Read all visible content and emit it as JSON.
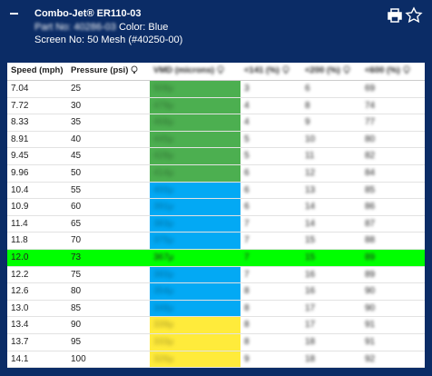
{
  "header": {
    "title": "Combo-Jet® ER110-03",
    "part_no": "Part No: 40286-03",
    "color": "Color: Blue",
    "screen": "Screen No: 50 Mesh (#40250-00)"
  },
  "table": {
    "columns": [
      "Speed (mph)",
      "Pressure (psi)",
      "VMD (microns)",
      "<141 (%)",
      "<200 (%)",
      "<600 (%)"
    ],
    "rows": [
      [
        "7.04",
        "25",
        "508μ",
        "3",
        "6",
        "69"
      ],
      [
        "7.72",
        "30",
        "479μ",
        "4",
        "8",
        "74"
      ],
      [
        "8.33",
        "35",
        "468μ",
        "4",
        "9",
        "77"
      ],
      [
        "8.91",
        "40",
        "445μ",
        "5",
        "10",
        "80"
      ],
      [
        "9.45",
        "45",
        "428μ",
        "5",
        "11",
        "82"
      ],
      [
        "9.96",
        "50",
        "414μ",
        "6",
        "12",
        "84"
      ],
      [
        "10.4",
        "55",
        "400μ",
        "6",
        "13",
        "85"
      ],
      [
        "10.9",
        "60",
        "391μ",
        "6",
        "14",
        "86"
      ],
      [
        "11.4",
        "65",
        "383μ",
        "7",
        "14",
        "87"
      ],
      [
        "11.8",
        "70",
        "375μ",
        "7",
        "15",
        "88"
      ],
      [
        "12.0",
        "73",
        "367μ",
        "7",
        "15",
        "89"
      ],
      [
        "12.2",
        "75",
        "360μ",
        "7",
        "16",
        "89"
      ],
      [
        "12.6",
        "80",
        "354μ",
        "8",
        "16",
        "90"
      ],
      [
        "13.0",
        "85",
        "348μ",
        "8",
        "17",
        "90"
      ],
      [
        "13.4",
        "90",
        "339μ",
        "8",
        "17",
        "91"
      ],
      [
        "13.7",
        "95",
        "333μ",
        "8",
        "18",
        "91"
      ],
      [
        "14.1",
        "100",
        "326μ",
        "9",
        "18",
        "92"
      ]
    ],
    "row_colors": [
      "#4caf50",
      "#4caf50",
      "#4caf50",
      "#4caf50",
      "#4caf50",
      "#4caf50",
      "#03a9f4",
      "#03a9f4",
      "#03a9f4",
      "#03a9f4",
      "#03a9f4",
      "#03a9f4",
      "#03a9f4",
      "#03a9f4",
      "#ffeb3b",
      "#ffeb3b",
      "#ffeb3b"
    ],
    "highlight_row": 10,
    "highlight_color": "#00ff00"
  }
}
